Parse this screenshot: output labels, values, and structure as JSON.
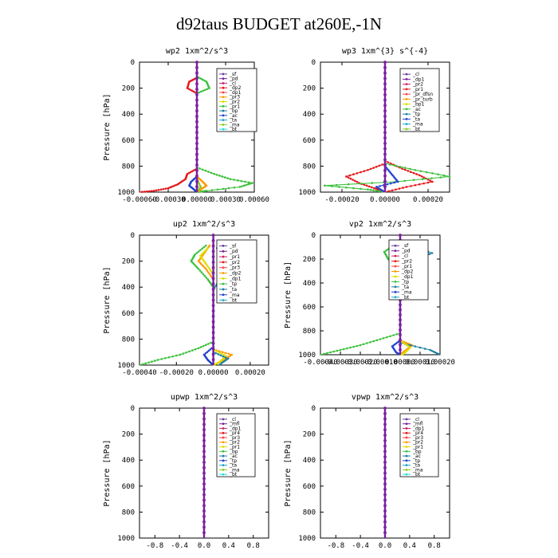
{
  "title": "d92taus  BUDGET at260E,-1N",
  "chart_data": [
    {
      "type": "line",
      "title": "wp2  1xm^2/s^3",
      "ylabel": "Pressure [hPa]",
      "yticks": [
        "0",
        "200",
        "400",
        "600",
        "800",
        "1000"
      ],
      "ylim": [
        0,
        1000
      ],
      "xlim": [
        -0.0006,
        0.0006
      ],
      "xticks": [
        -0.0006,
        -0.0003,
        0,
        0.0003,
        0.0006
      ],
      "xticklabels": [
        "-0.00060",
        "-0.00030",
        "0.00000",
        "0.00030",
        "0.00060"
      ],
      "legend": [
        "_sf",
        "_pd",
        "_cl",
        "_dp2",
        "_dp1",
        "_pr3",
        "_pr2",
        "_pr1",
        "_bp",
        "_ac",
        "_ta",
        "_ma",
        "_bt"
      ],
      "series": [
        {
          "name": "_pr2",
          "color": "#e41a1c",
          "p": [
            120,
            150,
            200,
            240,
            820,
            860,
            900,
            940,
            970,
            990,
            1000
          ],
          "v": [
            0,
            -8e-05,
            -0.0001,
            0,
            0,
            -0.0001,
            -0.00012,
            -0.0002,
            -0.0003,
            -0.00045,
            -0.0006
          ]
        },
        {
          "name": "_pr1",
          "color": "#3cc13c",
          "p": [
            110,
            150,
            200,
            240,
            810,
            860,
            900,
            930,
            960,
            990,
            1000
          ],
          "v": [
            0,
            0.0001,
            0.00013,
            0,
            0,
            0.00018,
            0.00035,
            0.00058,
            0.00045,
            0.0001,
            0
          ]
        },
        {
          "name": "_pr3",
          "color": "#ff9900",
          "p": [
            880,
            920,
            950,
            980,
            1000
          ],
          "v": [
            0,
            6e-05,
            0.0001,
            4e-05,
            0
          ]
        },
        {
          "name": "_ta",
          "color": "#2244cc",
          "p": [
            880,
            920,
            950,
            980,
            1000
          ],
          "v": [
            0,
            -6e-05,
            -8e-05,
            -3e-05,
            0
          ]
        },
        {
          "name": "_ma",
          "color": "#88cc22",
          "p": [
            900,
            960,
            1000
          ],
          "v": [
            0,
            4e-05,
            0
          ]
        },
        {
          "name": "_bt",
          "color": "#7a1fa2",
          "p": [
            0,
            1000
          ],
          "v": [
            0,
            0
          ]
        }
      ]
    },
    {
      "type": "line",
      "title": "wp3  1xm^{3} s^{-4}",
      "ylabel": "",
      "yticks": [
        "0",
        "200",
        "400",
        "600",
        "800",
        "1000"
      ],
      "ylim": [
        0,
        1000
      ],
      "xlim": [
        -0.0003,
        0.0003
      ],
      "xticks": [
        -0.0002,
        0,
        0.0002
      ],
      "xticklabels": [
        "-0.00020",
        "0.00000",
        "0.00020"
      ],
      "legend": [
        "_cl",
        "_dp1",
        "_pr2",
        "_pr1",
        "_pr_dfsn",
        "_pr_turb",
        "_bp1",
        "_ac",
        "_tp",
        "_ta",
        "_ma",
        "_bt"
      ],
      "series": [
        {
          "name": "_pr2",
          "color": "#e41a1c",
          "p": [
            760,
            820,
            870,
            920,
            960,
            1000
          ],
          "v": [
            0,
            8e-05,
            0.00016,
            0.00022,
            0.0001,
            0
          ]
        },
        {
          "name": "_pr1",
          "color": "#e41a1c",
          "p": [
            780,
            830,
            880,
            930,
            970,
            1000
          ],
          "v": [
            0,
            -8e-05,
            -0.00018,
            -0.00012,
            -5e-05,
            0
          ]
        },
        {
          "name": "_bp1",
          "color": "#3cc13c",
          "p": [
            780,
            830,
            880,
            920,
            950,
            980,
            1000
          ],
          "v": [
            0,
            0.00014,
            0.0003,
            5e-05,
            -0.00028,
            -8e-05,
            0
          ]
        },
        {
          "name": "_ta",
          "color": "#2244cc",
          "p": [
            800,
            860,
            920,
            960,
            1000
          ],
          "v": [
            0,
            3e-05,
            6e-05,
            -4e-05,
            0
          ]
        },
        {
          "name": "_bt",
          "color": "#7a1fa2",
          "p": [
            0,
            1000
          ],
          "v": [
            0,
            0
          ]
        }
      ]
    },
    {
      "type": "line",
      "title": "up2  1xm^2/s^3",
      "ylabel": "Pressure [hPa]",
      "yticks": [
        "0",
        "200",
        "400",
        "600",
        "800",
        "1000"
      ],
      "ylim": [
        0,
        1000
      ],
      "xlim": [
        -0.0004,
        0.0003
      ],
      "xticks": [
        -0.0004,
        -0.0002,
        0,
        0.0002
      ],
      "xticklabels": [
        "-0.00040",
        "-0.00020",
        "0.00000",
        "0.00020"
      ],
      "legend": [
        "_sf",
        "_pd",
        "_pr1",
        "_pr2",
        "_pr3",
        "_dp2",
        "_dp1",
        "_tp",
        "_ta",
        "_ma",
        "_bt"
      ],
      "series": [
        {
          "name": "_pr1",
          "color": "#3cc13c",
          "p": [
            80,
            150,
            200,
            260,
            340,
            400,
            820,
            870,
            920,
            960,
            1000
          ],
          "v": [
            -4e-05,
            -0.0001,
            -0.00012,
            -8e-05,
            -3e-05,
            0,
            0,
            -8e-05,
            -0.00018,
            -0.0003,
            -0.0004
          ]
        },
        {
          "name": "_pr2",
          "color": "#ff9900",
          "p": [
            80,
            140,
            200,
            260,
            340,
            880,
            920,
            960,
            1000
          ],
          "v": [
            -2e-05,
            -5e-05,
            -8e-05,
            -4e-05,
            0,
            0,
            0.0001,
            6e-05,
            0
          ]
        },
        {
          "name": "_pr3",
          "color": "#dddd00",
          "p": [
            100,
            160,
            220,
            300,
            880,
            930,
            980,
            1000
          ],
          "v": [
            -3e-05,
            -7e-05,
            -4e-05,
            0,
            0,
            7e-05,
            3e-05,
            0
          ]
        },
        {
          "name": "_tp",
          "color": "#2244cc",
          "p": [
            860,
            920,
            960,
            1000
          ],
          "v": [
            0,
            -5e-05,
            -3e-05,
            0
          ]
        },
        {
          "name": "_ta",
          "color": "#1a7fa0",
          "p": [
            100,
            160,
            250,
            330,
            420,
            900,
            950,
            1000
          ],
          "v": [
            2e-05,
            6e-05,
            9e-05,
            4e-05,
            0,
            0,
            8e-05,
            3e-05
          ]
        },
        {
          "name": "_bt",
          "color": "#7a1fa2",
          "p": [
            0,
            1000
          ],
          "v": [
            0,
            0
          ]
        }
      ]
    },
    {
      "type": "line",
      "title": "vp2  1xm^2/s^3",
      "ylabel": "Pressure [hPa]",
      "yticks": [
        "0",
        "200",
        "400",
        "600",
        "800",
        "1000"
      ],
      "ylim": [
        0,
        1000
      ],
      "xlim": [
        -0.0004,
        0.0002
      ],
      "xticks": [
        -0.0004,
        -0.0003,
        -0.0002,
        -0.0001,
        0,
        0.0001,
        0.0002
      ],
      "xticklabels": [
        "-0.00040",
        "-0.00030",
        "-0.00020",
        "-0.00010",
        "0.00000",
        "0.00010",
        "0.00020"
      ],
      "legend": [
        "_sf",
        "_pd",
        "_cl",
        "_pr2",
        "_pr1",
        "_dp2",
        "_dp1",
        "_tp",
        "_ta",
        "_ma",
        "_bt"
      ],
      "series": [
        {
          "name": "_pr1",
          "color": "#3cc13c",
          "p": [
            80,
            140,
            200,
            260,
            340,
            820,
            870,
            920,
            960,
            1000
          ],
          "v": [
            -3e-05,
            -8e-05,
            -6e-05,
            -2e-05,
            0,
            0,
            -0.0001,
            -0.0002,
            -0.0003,
            -0.0004
          ]
        },
        {
          "name": "_pr2",
          "color": "#ff9900",
          "p": [
            80,
            140,
            200,
            260,
            340,
            880,
            920,
            960,
            1000
          ],
          "v": [
            -2e-05,
            -5e-05,
            -4e-05,
            -1e-05,
            0,
            0,
            6e-05,
            3e-05,
            0
          ]
        },
        {
          "name": "_ta",
          "color": "#1a7fa0",
          "p": [
            80,
            150,
            200,
            260,
            340,
            900,
            960,
            1000
          ],
          "v": [
            4e-05,
            0.00016,
            8e-05,
            4e-05,
            0,
            0,
            0.00015,
            0.0002
          ]
        },
        {
          "name": "_tp",
          "color": "#2244cc",
          "p": [
            880,
            930,
            980,
            1000
          ],
          "v": [
            0,
            -4e-05,
            -2e-05,
            0
          ]
        },
        {
          "name": "_pr3",
          "color": "#dddd00",
          "p": [
            880,
            940,
            990,
            1000
          ],
          "v": [
            0,
            5e-05,
            2e-05,
            0
          ]
        },
        {
          "name": "_bt",
          "color": "#7a1fa2",
          "p": [
            0,
            1000
          ],
          "v": [
            0,
            0
          ]
        }
      ]
    },
    {
      "type": "line",
      "title": "upwp  1xm^2/s^3",
      "ylabel": "Pressure [hPa]",
      "yticks": [
        "0",
        "200",
        "400",
        "600",
        "800",
        "1000"
      ],
      "ylim": [
        0,
        1000
      ],
      "xlim": [
        -1.05,
        1.05
      ],
      "xticks": [
        -0.8,
        -0.4,
        0,
        0.4,
        0.8
      ],
      "xticklabels": [
        "-0.8",
        "-0.4",
        "0.0",
        "0.4",
        "0.8"
      ],
      "legend": [
        "_cl",
        "_mfl",
        "_dp1",
        "_pr4",
        "_pr3",
        "_pr2",
        "_pr1",
        "_bp",
        "_ac",
        "_tp",
        "_ta",
        "_ma",
        "_bt"
      ],
      "series": [
        {
          "name": "_bt",
          "color": "#7a1fa2",
          "p": [
            0,
            1000
          ],
          "v": [
            0,
            0
          ]
        }
      ]
    },
    {
      "type": "line",
      "title": "vpwp  1xm^2/s^3",
      "ylabel": "Pressure [hPa]",
      "yticks": [
        "0",
        "200",
        "400",
        "600",
        "800",
        "1000"
      ],
      "ylim": [
        0,
        1000
      ],
      "xlim": [
        -1.05,
        1.05
      ],
      "xticks": [
        -0.8,
        -0.4,
        0,
        0.4,
        0.8
      ],
      "xticklabels": [
        "-0.8",
        "-0.4",
        "0.0",
        "0.4",
        "0.8"
      ],
      "legend": [
        "_cl",
        "_mfl",
        "_dp1",
        "_pr4",
        "_pr3",
        "_pr2",
        "_pr1",
        "_bp",
        "_ac",
        "_tp",
        "_ta",
        "_ma",
        "_bt"
      ],
      "series": [
        {
          "name": "_bt",
          "color": "#7a1fa2",
          "p": [
            0,
            1000
          ],
          "v": [
            0,
            0
          ]
        }
      ]
    }
  ],
  "legend_colors": [
    "#6a3d9a",
    "#7a1fa2",
    "#cc2266",
    "#e41a1c",
    "#ff4444",
    "#ff9900",
    "#dddd00",
    "#3cc13c",
    "#1a7fa0",
    "#2244cc",
    "#22aacc",
    "#88cc22",
    "#22dddd"
  ]
}
